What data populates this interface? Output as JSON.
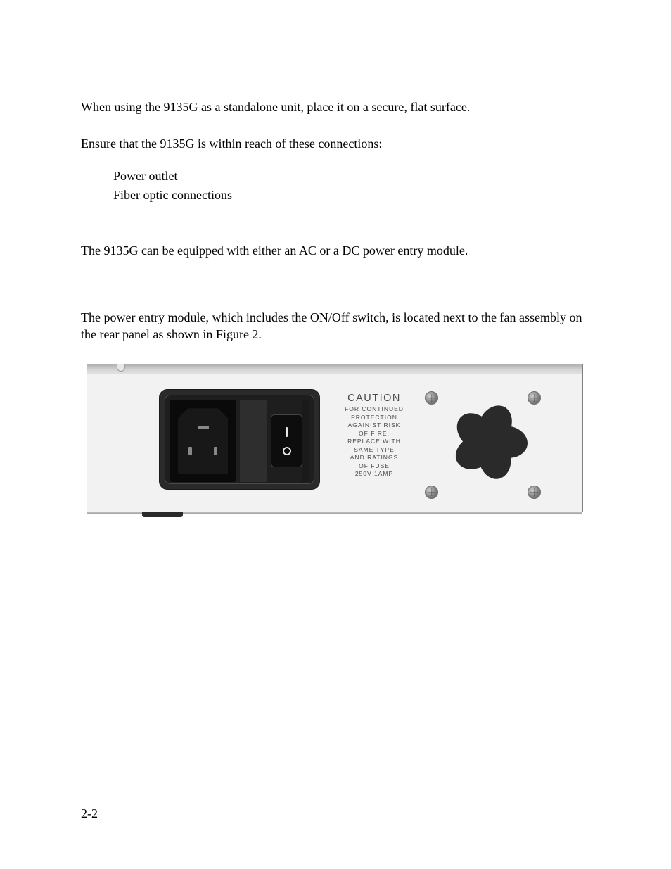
{
  "paragraphs": {
    "p1": "When using the 9135G as a standalone unit, place it on a secure, flat surface.",
    "p2": "Ensure that the 9135G is within reach of these connections:",
    "p3": "The 9135G can be equipped with either an AC or a DC power entry module.",
    "p4": "The power entry module, which includes the ON/Off switch, is located next to the fan assembly on the rear panel as shown in Figure 2."
  },
  "list": {
    "item1": "Power outlet",
    "item2": "Fiber optic connections"
  },
  "figure": {
    "caution_title": "CAUTION",
    "caution_lines": {
      "l1": "FOR CONTINUED",
      "l2": "PROTECTION",
      "l3": "AGAINIST RISK",
      "l4": "OF FIRE,",
      "l5": "REPLACE WITH",
      "l6": "SAME TYPE",
      "l7": "AND RATINGS",
      "l8": "OF FUSE",
      "l9": "250V 1AMP"
    },
    "colors": {
      "panel_bg": "#f2f2f2",
      "module_bg": "#2a2a2a",
      "socket_bg": "#0a0a0a",
      "text_color": "#4a4a4a",
      "fan_blade": "#2a2a2a"
    },
    "font": {
      "caution_title_size_pt": 14.5,
      "caution_body_size_pt": 8.5,
      "body_font_family": "Arial"
    }
  },
  "page_number": "2-2",
  "typography": {
    "body_font": "Times New Roman",
    "body_size_pt": 18,
    "text_color": "#000000",
    "background_color": "#ffffff"
  }
}
